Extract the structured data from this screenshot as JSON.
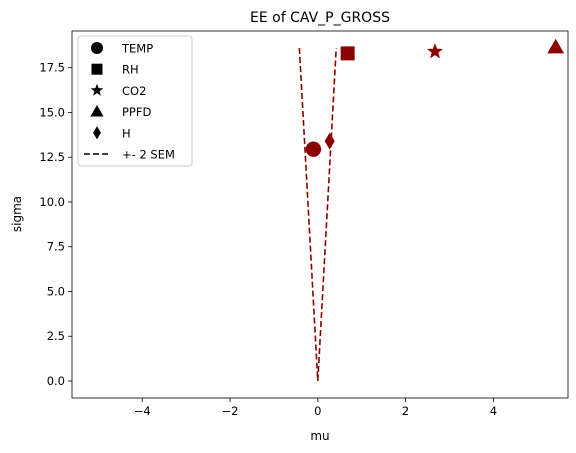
{
  "chart_data": {
    "type": "scatter",
    "title": "EE of CAV_P_GROSS",
    "xlabel": "mu",
    "ylabel": "sigma",
    "xlim": [
      -5.6,
      5.7
    ],
    "ylim": [
      -0.95,
      19.55
    ],
    "xticks": [
      -4,
      -2,
      0,
      2,
      4
    ],
    "yticks": [
      0.0,
      2.5,
      5.0,
      7.5,
      10.0,
      12.5,
      15.0,
      17.5
    ],
    "xtick_labels": [
      "−4",
      "−2",
      "0",
      "2",
      "4"
    ],
    "ytick_labels": [
      "0.0",
      "2.5",
      "5.0",
      "7.5",
      "10.0",
      "12.5",
      "15.0",
      "17.5"
    ],
    "grid": false,
    "legend_position": "top-left",
    "marker_color": "#8b0000",
    "legend_marker_color": "#000000",
    "series": [
      {
        "name": "TEMP",
        "marker": "circle",
        "points": [
          {
            "x": -0.1,
            "y": 12.95
          }
        ]
      },
      {
        "name": "RH",
        "marker": "square",
        "points": [
          {
            "x": 0.68,
            "y": 18.3
          }
        ]
      },
      {
        "name": "CO2",
        "marker": "star",
        "points": [
          {
            "x": 2.67,
            "y": 18.4
          }
        ]
      },
      {
        "name": "PPFD",
        "marker": "triangle",
        "points": [
          {
            "x": 5.42,
            "y": 18.65
          }
        ]
      },
      {
        "name": "H",
        "marker": "diamond",
        "points": [
          {
            "x": 0.27,
            "y": 13.4
          }
        ]
      }
    ],
    "sem_band": {
      "name": "+- 2 SEM",
      "style": "dashed",
      "left": [
        {
          "x": -0.42,
          "y": 18.6
        },
        {
          "x": 0.0,
          "y": 0.0
        }
      ],
      "right": [
        {
          "x": 0.0,
          "y": 0.0
        },
        {
          "x": 0.42,
          "y": 18.6
        }
      ]
    }
  }
}
